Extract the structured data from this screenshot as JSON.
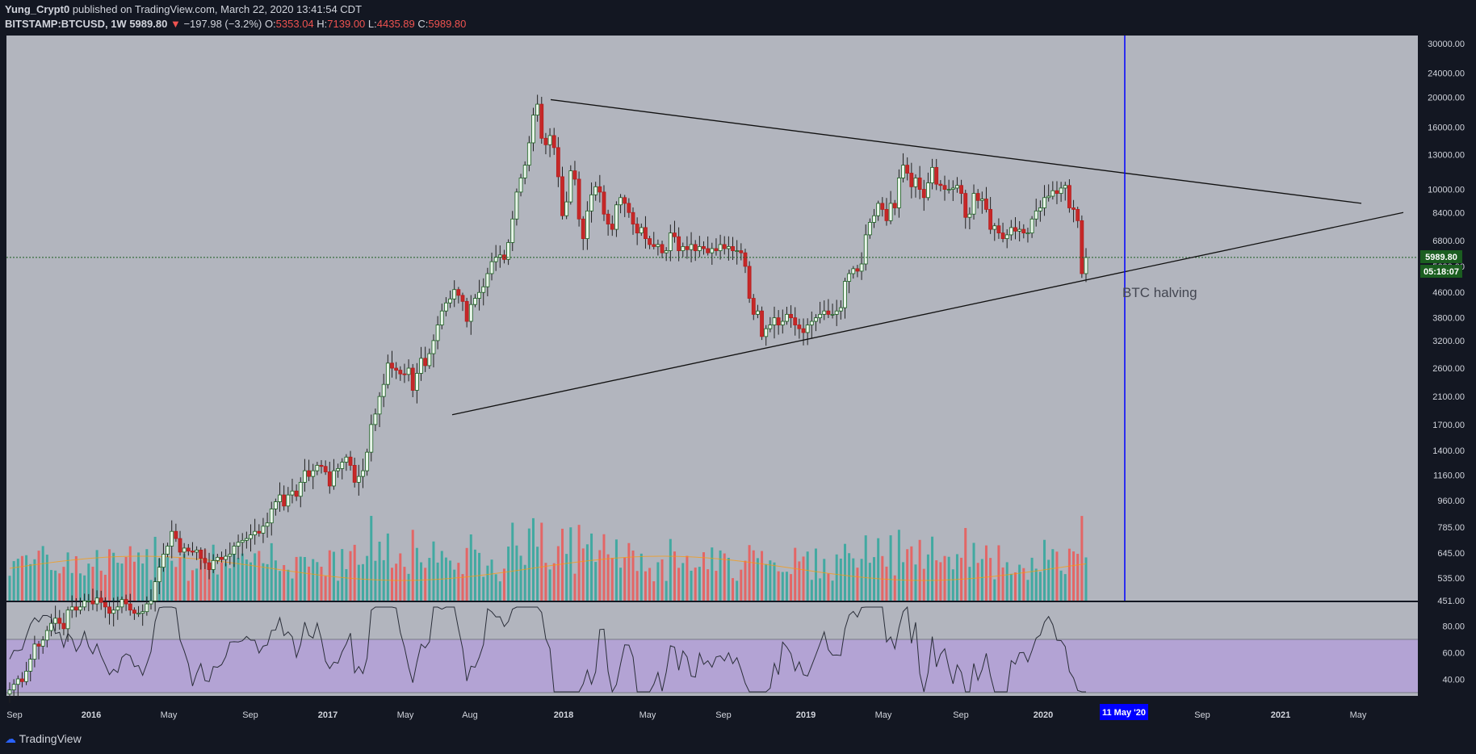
{
  "header": {
    "publisher": "Yung_Crypt0",
    "published_text": "published on TradingView.com, March 22, 2020 13:41:54 CDT",
    "symbol": "BITSTAMP:BTCUSD, 1W",
    "last": "5989.80",
    "change": "−197.98 (−3.2%)",
    "o_label": "O:",
    "o_val": "5353.04",
    "h_label": "H:",
    "h_val": "7139.00",
    "l_label": "L:",
    "l_val": "4435.89",
    "c_label": "C:",
    "c_val": "5989.80"
  },
  "colors": {
    "up": "#26a69a",
    "down": "#c62828",
    "bg_main": "#b2b5be",
    "rsi_band": "#b39ddb",
    "halving": "#0000ff",
    "price_badge": "#1b5e20"
  },
  "annotations": {
    "halving_label": "BTC halving",
    "halving_date": "11 May '20"
  },
  "price_badge": {
    "price": "5989.80",
    "countdown": "05:18:07"
  },
  "footer": {
    "brand": "TradingView"
  },
  "chart_data": {
    "type": "candlestick",
    "symbol": "BITSTAMP:BTCUSD",
    "interval": "1W",
    "y_scale": "log",
    "y_ticks": [
      "30000.00",
      "24000.00",
      "20000.00",
      "16000.00",
      "13000.00",
      "10000.00",
      "8400.00",
      "6800.00",
      "5600.00",
      "4600.00",
      "3800.00",
      "3200.00",
      "2600.00",
      "2100.00",
      "1700.00",
      "1400.00",
      "1160.00",
      "960.00",
      "785.00",
      "645.00",
      "535.00",
      "451.00"
    ],
    "rsi_ticks": [
      "80.00",
      "60.00",
      "40.00"
    ],
    "rsi_band": [
      30,
      70
    ],
    "x_ticks": [
      "Sep",
      "2016",
      "May",
      "Sep",
      "2017",
      "May",
      "Aug",
      "2018",
      "May",
      "Sep",
      "2019",
      "May",
      "Sep",
      "2020",
      "Sep",
      "2021",
      "May"
    ],
    "halving_line": "11 May '20",
    "last_price": 5989.8,
    "trendlines": [
      {
        "from": [
          "Dec 2017",
          19666
        ],
        "to": [
          "Jul 2020",
          9000
        ]
      },
      {
        "from": [
          "Jul 2017",
          1830
        ],
        "to": [
          "Jul 2020",
          8400
        ]
      }
    ],
    "series": [
      {
        "name": "BTCUSD",
        "close": [
          230,
          240,
          250,
          245,
          265,
          290,
          325,
          320,
          335,
          360,
          380,
          395,
          380,
          365,
          420,
          430,
          420,
          430,
          450,
          450,
          440,
          460,
          445,
          430,
          410,
          420,
          430,
          455,
          440,
          420,
          410,
          410,
          415,
          440,
          450,
          520,
          580,
          640,
          680,
          760,
          720,
          650,
          670,
          655,
          650,
          660,
          620,
          600,
          570,
          610,
          625,
          615,
          630,
          640,
          680,
          700,
          710,
          720,
          740,
          760,
          750,
          790,
          810,
          900,
          950,
          1000,
          920,
          1000,
          1030,
          990,
          1100,
          1200,
          1150,
          1200,
          1250,
          1240,
          1190,
          1070,
          1200,
          1220,
          1280,
          1330,
          1250,
          1100,
          1150,
          1200,
          1380,
          1700,
          1840,
          2100,
          2300,
          2700,
          2600,
          2560,
          2490,
          2480,
          2600,
          2200,
          2500,
          2800,
          2650,
          2900,
          3200,
          3600,
          4000,
          4250,
          4380,
          4700,
          4500,
          4300,
          3700,
          4200,
          4400,
          4600,
          4800,
          5300,
          5800,
          6000,
          6100,
          5900,
          6700,
          8000,
          9800,
          10900,
          12000,
          14200,
          17500,
          19000,
          14700,
          14000,
          15000,
          13700,
          11000,
          8200,
          9100,
          11500,
          10800,
          8000,
          6900,
          8500,
          9600,
          10200,
          9800,
          8300,
          7700,
          7400,
          8900,
          9400,
          9000,
          8400,
          7700,
          7200,
          7500,
          6900,
          6600,
          6500,
          6600,
          6200,
          6300,
          7200,
          7000,
          6300,
          6500,
          6350,
          6600,
          6300,
          6500,
          6400,
          6200,
          6400,
          6300,
          6600,
          6400,
          6500,
          6300,
          6300,
          6200,
          5600,
          4400,
          3900,
          4000,
          3300,
          3500,
          3600,
          3800,
          3600,
          3700,
          3900,
          3800,
          3600,
          3500,
          3400,
          3600,
          3700,
          3800,
          3900,
          4000,
          3900,
          3900,
          4000,
          4100,
          5000,
          5300,
          5500,
          5400,
          5700,
          7100,
          7800,
          8200,
          9000,
          8600,
          7900,
          9000,
          8700,
          10900,
          12000,
          11300,
          10200,
          10900,
          10000,
          9400,
          10500,
          11800,
          10400,
          10300,
          10000,
          10000,
          10100,
          10300,
          9700,
          8100,
          8300,
          9700,
          9200,
          9300,
          8600,
          7400,
          7600,
          7200,
          6900,
          7100,
          7500,
          7300,
          7400,
          7200,
          7200,
          8000,
          8500,
          8700,
          9400,
          9500,
          9900,
          9700,
          10100,
          10300,
          8700,
          8600,
          7900,
          5300,
          5990
        ]
      },
      {
        "name": "Volume",
        "values": [],
        "ma": true
      },
      {
        "name": "RSI",
        "values": []
      }
    ]
  }
}
